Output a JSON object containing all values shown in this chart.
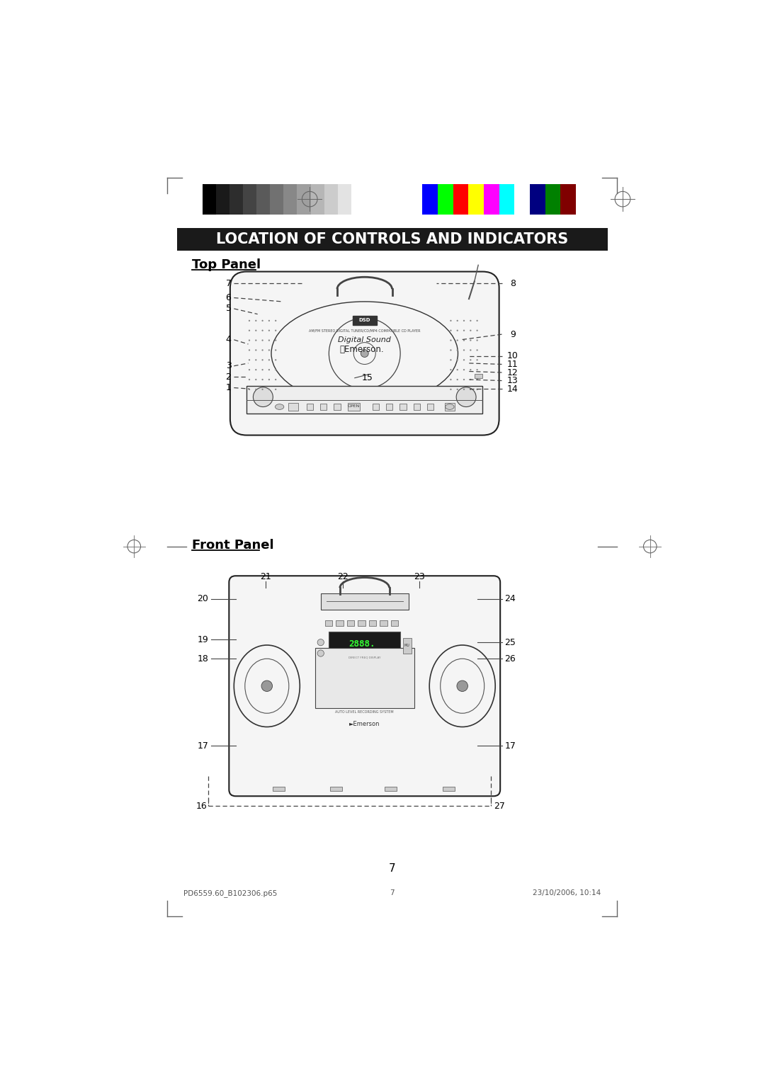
{
  "title": "LOCATION OF CONTROLS AND INDICATORS",
  "top_panel_label": "Top Panel",
  "front_panel_label": "Front Panel",
  "page_number": "7",
  "footer_left": "PD6559.60_B102306.p65",
  "footer_center": "7",
  "footer_right": "23/10/2006, 10:14",
  "bg_color": "#ffffff",
  "header_bg": "#1a1a1a",
  "header_text_color": "#ffffff",
  "grayscale_colors": [
    "#000000",
    "#1a1a1a",
    "#2d2d2d",
    "#444444",
    "#5a5a5a",
    "#717171",
    "#888888",
    "#9f9f9f",
    "#b6b6b6",
    "#cccccc",
    "#e3e3e3",
    "#ffffff"
  ],
  "color_bars": [
    "#0000ff",
    "#00ff00",
    "#ff0000",
    "#ffff00",
    "#ff00ff",
    "#00ffff",
    "#ffffff",
    "#000080",
    "#008000",
    "#800000"
  ]
}
